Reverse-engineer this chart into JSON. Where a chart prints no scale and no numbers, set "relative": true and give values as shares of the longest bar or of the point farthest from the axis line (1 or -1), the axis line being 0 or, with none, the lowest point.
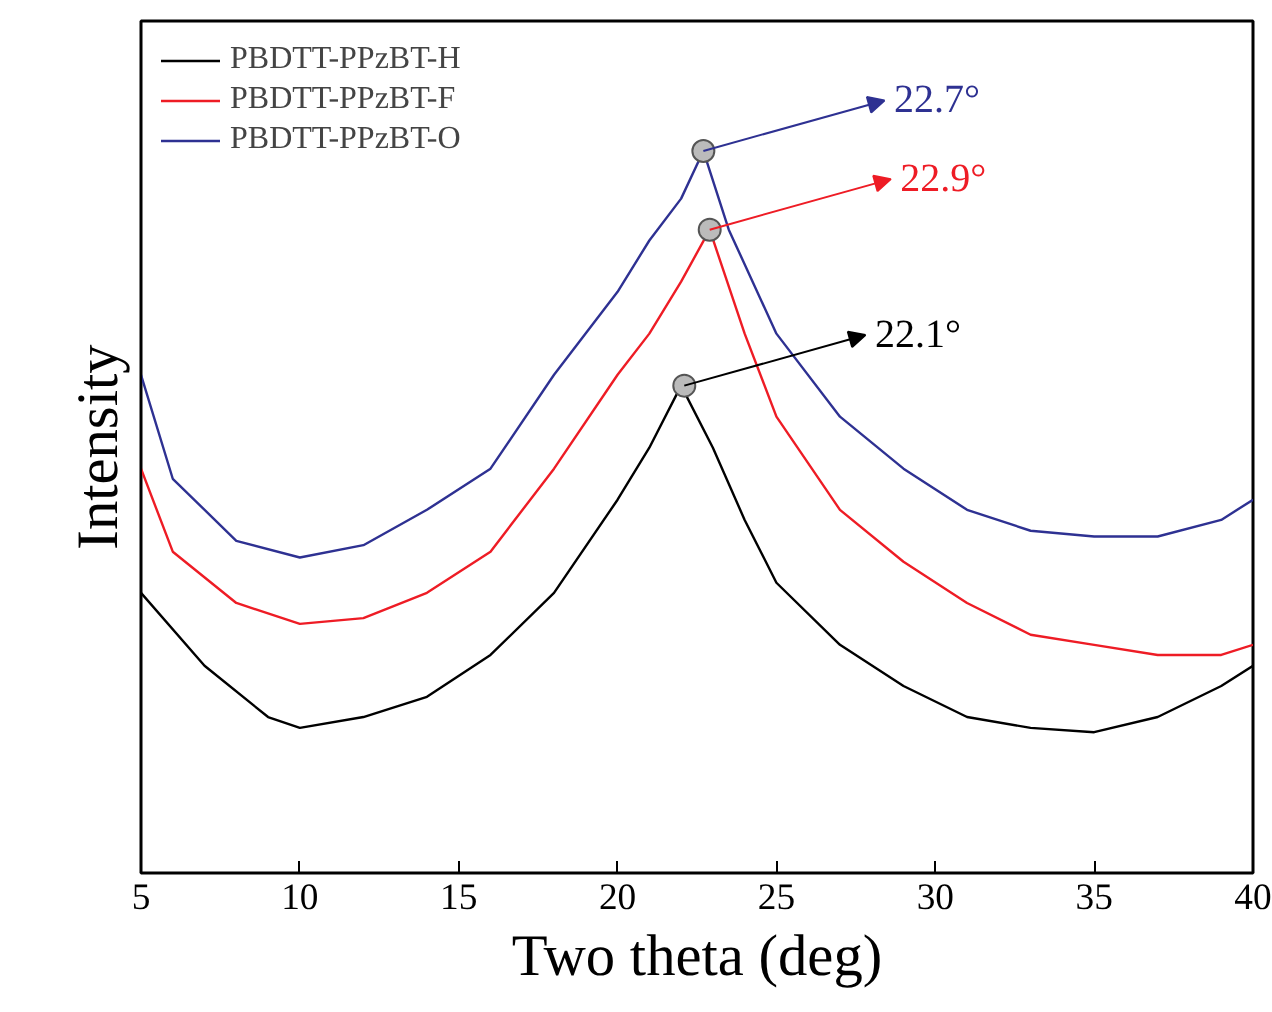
{
  "chart_data": {
    "type": "line",
    "relative": true,
    "xlabel": "Two theta (deg)",
    "ylabel": "Intensity",
    "x": [
      5,
      7,
      9,
      10,
      12,
      14,
      16,
      18,
      20,
      21,
      22,
      23,
      24,
      25,
      27,
      29,
      31,
      33,
      35,
      37,
      39,
      40
    ],
    "xlim": [
      5,
      40
    ],
    "xticks": [
      5,
      10,
      15,
      20,
      25,
      30,
      35,
      40
    ],
    "grid": false,
    "legend": "top left",
    "marker": "none",
    "line_style": "solid",
    "series": [
      {
        "name": "PBDTT-PPzBT-H",
        "color": "#000000",
        "values": [
          0.388,
          0.287,
          0.216,
          0.201,
          0.216,
          0.244,
          0.302,
          0.388,
          0.517,
          0.589,
          0.675,
          0.589,
          0.489,
          0.402,
          0.316,
          0.259,
          0.216,
          0.201,
          0.195,
          0.216,
          0.259,
          0.287
        ]
      },
      {
        "name": "PBDTT-PPzBT-F",
        "color": "#ee1c25",
        "x": [
          5,
          6,
          8,
          10,
          12,
          14,
          16,
          18,
          20,
          21,
          22,
          22.9,
          24,
          25,
          27,
          29,
          31,
          33,
          35,
          37,
          39,
          40
        ],
        "values": [
          0.56,
          0.445,
          0.374,
          0.345,
          0.353,
          0.388,
          0.445,
          0.56,
          0.69,
          0.747,
          0.819,
          0.891,
          0.747,
          0.632,
          0.503,
          0.431,
          0.374,
          0.33,
          0.316,
          0.302,
          0.302,
          0.316
        ]
      },
      {
        "name": "PBDTT-PPzBT-O",
        "color": "#2e3192",
        "x": [
          5,
          6,
          8,
          10,
          12,
          14,
          16,
          18,
          20,
          21,
          22,
          22.7,
          23.5,
          25,
          27,
          29,
          31,
          33,
          35,
          37,
          39,
          40
        ],
        "values": [
          0.69,
          0.546,
          0.46,
          0.437,
          0.454,
          0.503,
          0.56,
          0.69,
          0.805,
          0.876,
          0.934,
          1.0,
          0.891,
          0.747,
          0.632,
          0.56,
          0.503,
          0.474,
          0.466,
          0.466,
          0.489,
          0.517
        ]
      }
    ],
    "annotations": [
      {
        "text": "22.1°",
        "x": 22.1,
        "y": 0.675
      },
      {
        "text": "22.9°",
        "x": 22.9,
        "y": 0.891
      },
      {
        "text": "22.7°",
        "x": 22.7,
        "y": 1.0
      }
    ]
  }
}
